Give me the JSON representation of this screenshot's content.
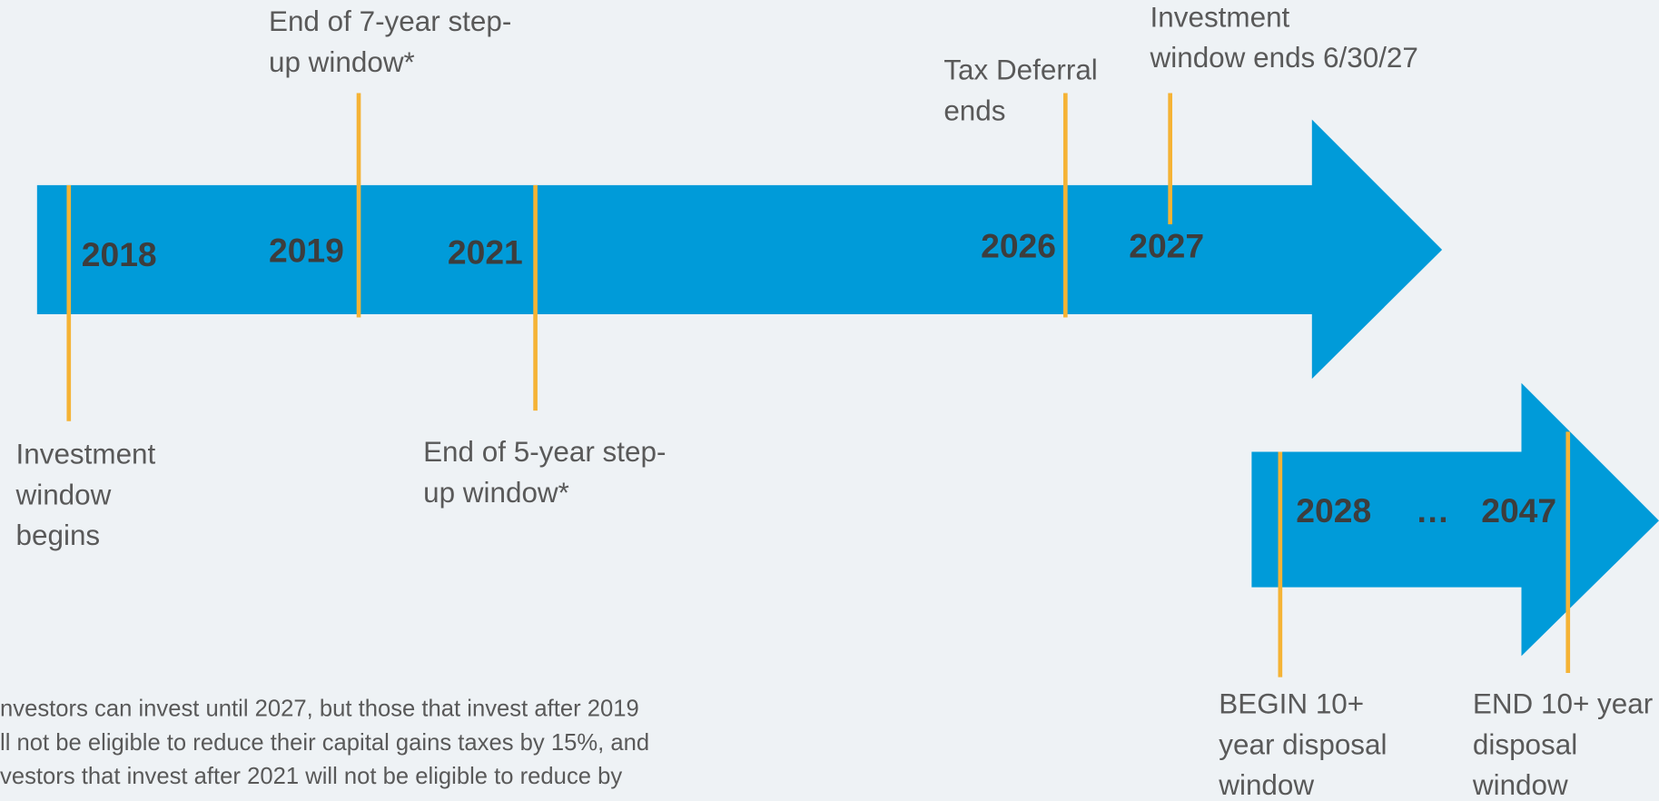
{
  "timeline": {
    "years": [
      "2018",
      "2019",
      "2021",
      "2026",
      "2027"
    ],
    "labels": [
      {
        "lines": [
          "End of 7-year step-",
          "up window*"
        ]
      },
      {
        "lines": [
          "Tax Deferral",
          "ends"
        ]
      },
      {
        "lines": [
          "Investment",
          "window ends 6/30/27"
        ]
      },
      {
        "lines": [
          "Investment",
          "window",
          "begins"
        ]
      },
      {
        "lines": [
          "End of 5-year step-",
          "up window*"
        ]
      }
    ]
  },
  "disposal": {
    "years": [
      "2028",
      "…",
      "2047"
    ],
    "labels": [
      {
        "lines": [
          "BEGIN 10+",
          "year disposal",
          "window"
        ]
      },
      {
        "lines": [
          "END 10+ year",
          "disposal",
          "window"
        ]
      }
    ]
  },
  "footnote": {
    "lines": [
      "nvestors can invest until 2027, but those that invest after 2019",
      "ll not be eligible to reduce their capital gains taxes by 15%, and",
      "vestors that invest after 2021 will not be eligible to reduce by"
    ]
  }
}
